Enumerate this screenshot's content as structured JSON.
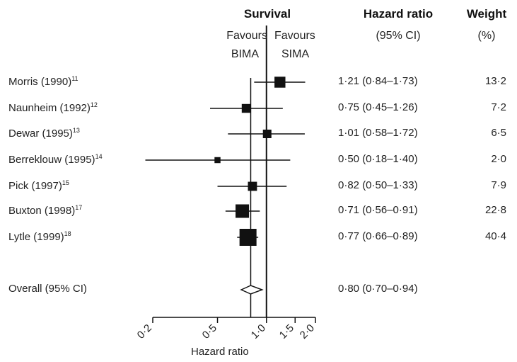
{
  "headers": {
    "survival": "Survival",
    "favours_left": "Favours",
    "favours_left_2": "BIMA",
    "favours_right": "Favours",
    "favours_right_2": "SIMA",
    "hr_title": "Hazard ratio",
    "hr_sub": "(95% CI)",
    "weight_title": "Weight",
    "weight_sub": "(%)"
  },
  "chart_data": {
    "type": "forest",
    "xlabel": "Hazard ratio",
    "xscale": "log",
    "xlim": [
      0.2,
      2.0
    ],
    "ticks": [
      {
        "value": 0.2,
        "label": "0·2"
      },
      {
        "value": 0.5,
        "label": "0·5"
      },
      {
        "value": 1.0,
        "label": "1·0"
      },
      {
        "value": 1.5,
        "label": "1·5"
      },
      {
        "value": 2.0,
        "label": "2·0"
      }
    ],
    "reference_line": 1.0,
    "pooled_line": 0.8,
    "studies": [
      {
        "name": "Morris (1990)",
        "ref": "11",
        "hr": 1.21,
        "lo": 0.84,
        "hi": 1.73,
        "ci_text": "1·21 (0·84–1·73)",
        "weight": 13.2,
        "weight_text": "13·2"
      },
      {
        "name": "Naunheim (1992)",
        "ref": "12",
        "hr": 0.75,
        "lo": 0.45,
        "hi": 1.26,
        "ci_text": "0·75 (0·45–1·26)",
        "weight": 7.2,
        "weight_text": "7·2"
      },
      {
        "name": "Dewar (1995)",
        "ref": "13",
        "hr": 1.01,
        "lo": 0.58,
        "hi": 1.72,
        "ci_text": "1·01 (0·58–1·72)",
        "weight": 6.5,
        "weight_text": "6·5"
      },
      {
        "name": "Berreklouw (1995)",
        "ref": "14",
        "hr": 0.5,
        "lo": 0.18,
        "hi": 1.4,
        "ci_text": "0·50 (0·18–1·40)",
        "weight": 2.0,
        "weight_text": "2·0"
      },
      {
        "name": "Pick (1997)",
        "ref": "15",
        "hr": 0.82,
        "lo": 0.5,
        "hi": 1.33,
        "ci_text": "0·82 (0·50–1·33)",
        "weight": 7.9,
        "weight_text": "7·9"
      },
      {
        "name": "Buxton (1998)",
        "ref": "17",
        "hr": 0.71,
        "lo": 0.56,
        "hi": 0.91,
        "ci_text": "0·71 (0·56–0·91)",
        "weight": 22.8,
        "weight_text": "22·8"
      },
      {
        "name": "Lytle (1999)",
        "ref": "18",
        "hr": 0.77,
        "lo": 0.66,
        "hi": 0.89,
        "ci_text": "0·77 (0·66–0·89)",
        "weight": 40.4,
        "weight_text": "40·4"
      }
    ],
    "overall": {
      "name": "Overall (95% CI)",
      "hr": 0.8,
      "lo": 0.7,
      "hi": 0.94,
      "ci_text": "0·80 (0·70–0·94)"
    }
  }
}
